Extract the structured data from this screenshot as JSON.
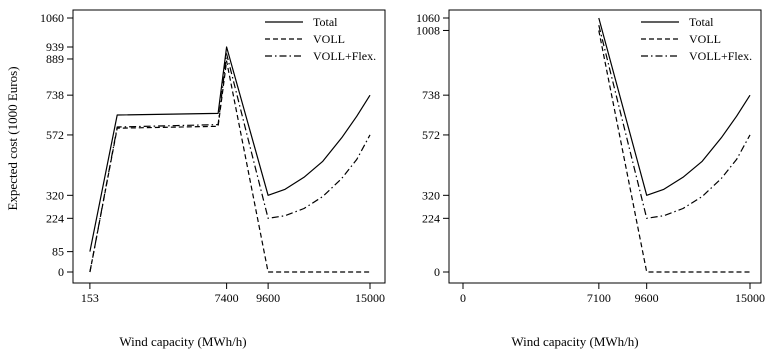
{
  "chart_data": [
    {
      "type": "line",
      "xlabel": "Wind capacity (MWh/h)",
      "ylabel": "Expected cost (1000 Euros)",
      "xlim": [
        0,
        15000
      ],
      "ylim": [
        0,
        1060
      ],
      "xticks": [
        153,
        7400,
        9600,
        15000
      ],
      "yticks": [
        0,
        85,
        224,
        320,
        572,
        738,
        889,
        939,
        1060
      ],
      "legend_position": "top-right",
      "series": [
        {
          "name": "Total",
          "style": "solid",
          "x": [
            153,
            1600,
            6950,
            7400,
            9600,
            10500,
            11500,
            12500,
            13500,
            14300,
            15000
          ],
          "y": [
            85,
            655,
            662,
            939,
            320,
            345,
            395,
            462,
            560,
            650,
            738
          ]
        },
        {
          "name": "VOLL",
          "style": "dashed",
          "x": [
            153,
            300,
            1600,
            6950,
            7400,
            9600,
            15000
          ],
          "y": [
            0,
            60,
            600,
            608,
            880,
            0,
            0
          ]
        },
        {
          "name": "VOLL+Flex.",
          "style": "dotdash",
          "x": [
            153,
            300,
            1600,
            6950,
            7400,
            9600,
            10500,
            11500,
            12500,
            13500,
            14300,
            15000
          ],
          "y": [
            0,
            60,
            605,
            615,
            910,
            224,
            235,
            265,
            315,
            390,
            470,
            572
          ]
        }
      ]
    },
    {
      "type": "line",
      "xlabel": "Wind capacity (MWh/h)",
      "ylabel": "",
      "xlim": [
        0,
        15000
      ],
      "ylim": [
        0,
        1060
      ],
      "xticks": [
        0,
        7100,
        9600,
        15000
      ],
      "yticks": [
        0,
        224,
        320,
        572,
        738,
        1008,
        1060
      ],
      "legend_position": "top-right",
      "series": [
        {
          "name": "Total",
          "style": "solid",
          "x": [
            7100,
            9600,
            10500,
            11500,
            12500,
            13500,
            14300,
            15000
          ],
          "y": [
            1060,
            320,
            345,
            395,
            462,
            560,
            650,
            738
          ]
        },
        {
          "name": "VOLL",
          "style": "dashed",
          "x": [
            7100,
            9600,
            15000
          ],
          "y": [
            1008,
            0,
            0
          ]
        },
        {
          "name": "VOLL+Flex.",
          "style": "dotdash",
          "x": [
            7100,
            9600,
            10500,
            11500,
            12500,
            13500,
            14300,
            15000
          ],
          "y": [
            1030,
            224,
            235,
            265,
            315,
            390,
            470,
            572
          ]
        }
      ]
    }
  ]
}
